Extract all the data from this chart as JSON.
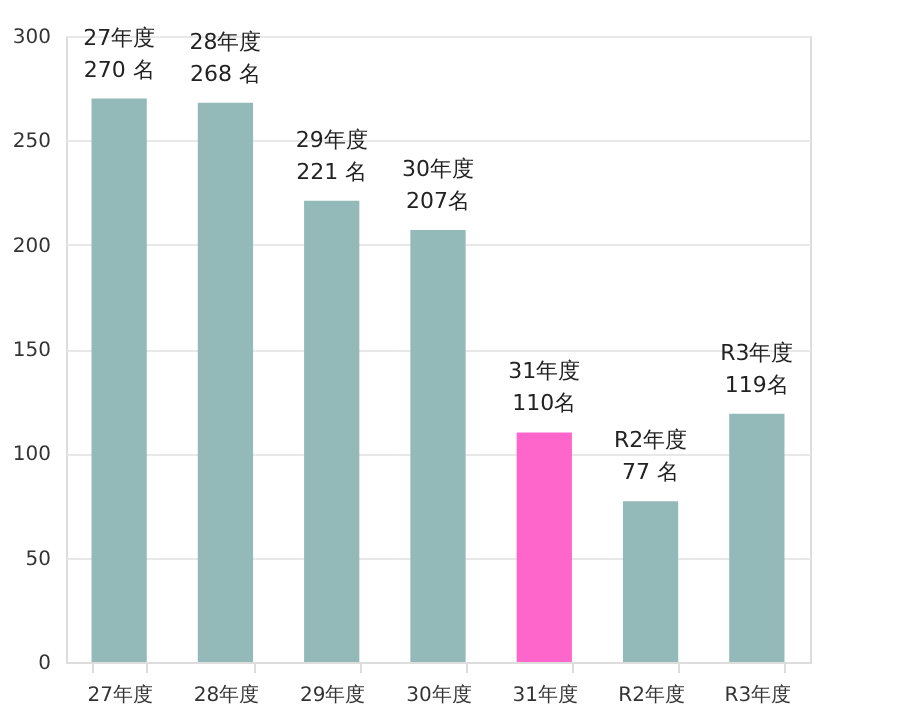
{
  "chart_data": {
    "type": "bar",
    "categories": [
      "27年度",
      "28年度",
      "29年度",
      "30年度",
      "31年度",
      "R2年度",
      "R3年度"
    ],
    "values": [
      270,
      268,
      221,
      207,
      110,
      77,
      119
    ],
    "colors": [
      "#93bab8",
      "#93bab8",
      "#93bab8",
      "#93bab8",
      "#ff66cc",
      "#93bab8",
      "#93bab8"
    ],
    "value_labels": [
      "27年度\n270 名",
      "28年度\n268 名",
      "29年度\n221 名",
      "30年度\n207名",
      "31年度\n110名",
      "R2年度\n77 名",
      "R3年度\n119名"
    ],
    "ylim": [
      0,
      300
    ],
    "yticks": [
      0,
      50,
      100,
      150,
      200,
      250,
      300
    ],
    "grid": "y"
  }
}
